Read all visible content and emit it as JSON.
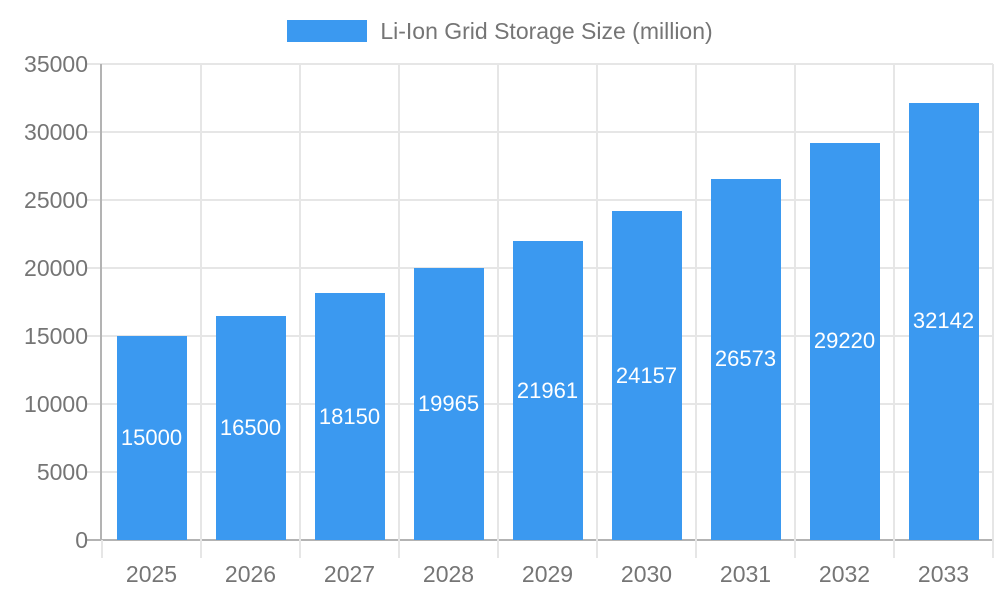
{
  "chart_data": {
    "type": "bar",
    "title": "Li-Ion Grid Storage Size (million)",
    "categories": [
      "2025",
      "2026",
      "2027",
      "2028",
      "2029",
      "2030",
      "2031",
      "2032",
      "2033"
    ],
    "values": [
      15000,
      16500,
      18150,
      19965,
      21961,
      24157,
      26573,
      29220,
      32142
    ],
    "xlabel": "",
    "ylabel": "",
    "ylim": [
      0,
      35000
    ],
    "ytick_step": 5000,
    "yticks": [
      "0",
      "5000",
      "10000",
      "15000",
      "20000",
      "25000",
      "30000",
      "35000"
    ],
    "legend_position": "top",
    "grid": true,
    "colors": {
      "bar": "#3b99f0",
      "bar_value_label": "#ffffff",
      "axis_text": "#757575",
      "axis_line": "#b3b3b3",
      "gridline": "#e6e6e6",
      "background": "#ffffff"
    }
  }
}
